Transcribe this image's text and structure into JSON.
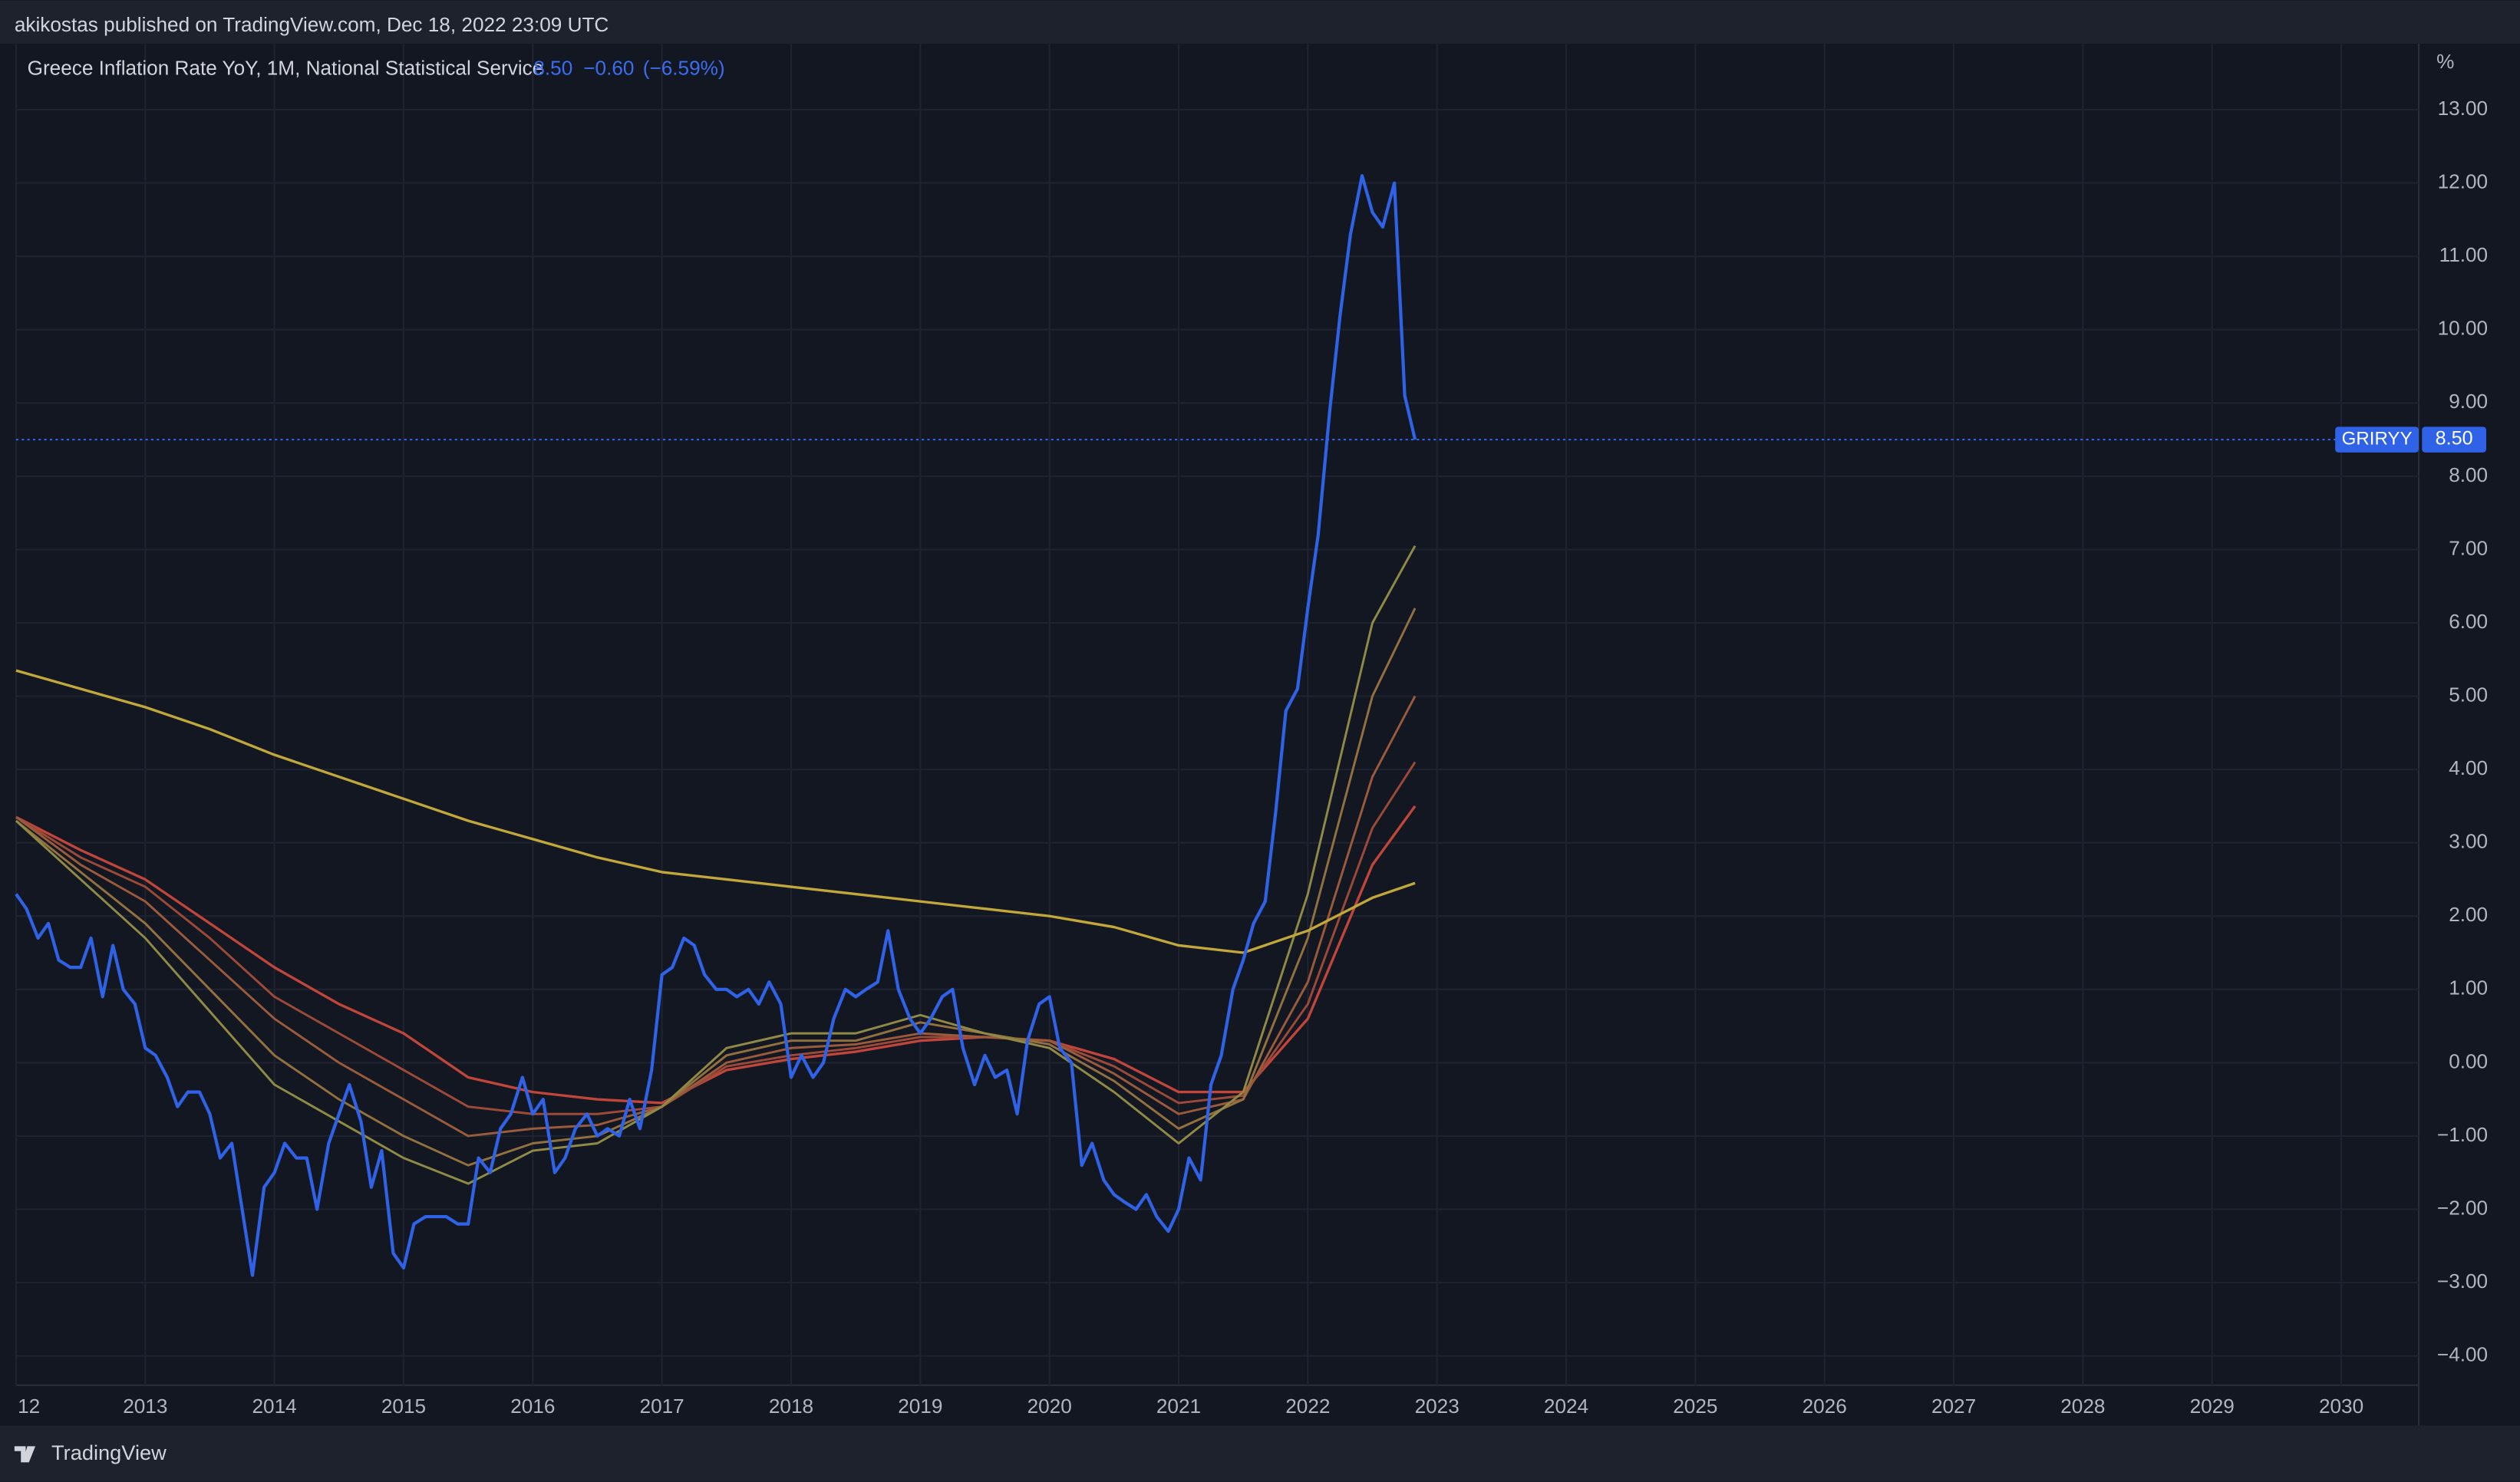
{
  "header": {
    "text": "akikostas published on TradingView.com, Dec 18, 2022 23:09 UTC"
  },
  "footer": {
    "brand": "TradingView"
  },
  "chart_data": {
    "type": "line",
    "legend": {
      "value": "8.50",
      "change": "−0.60",
      "change_pct": "(−6.59%)"
    },
    "y_unit": "%",
    "price_label": {
      "name": "GRIRYY",
      "value": 8.5,
      "label": "8.50"
    },
    "xlim": [
      2012.0,
      2030.6
    ],
    "ylim": [
      -4.4,
      13.9
    ],
    "grid": true,
    "xticks": [
      {
        "value": 2012,
        "label": "12"
      },
      2013,
      2014,
      2015,
      2016,
      2017,
      2018,
      2019,
      2020,
      2021,
      2022,
      2023,
      2024,
      2025,
      2026,
      2027,
      2028,
      2029,
      2030
    ],
    "yticks": [
      {
        "value": -4,
        "label": "−4.00"
      },
      {
        "value": -3,
        "label": "−3.00"
      },
      {
        "value": -2,
        "label": "−2.00"
      },
      {
        "value": -1,
        "label": "−1.00"
      },
      {
        "value": 0,
        "label": "0.00"
      },
      {
        "value": 1,
        "label": "1.00"
      },
      {
        "value": 2,
        "label": "2.00"
      },
      {
        "value": 3,
        "label": "3.00"
      },
      {
        "value": 4,
        "label": "4.00"
      },
      {
        "value": 5,
        "label": "5.00"
      },
      {
        "value": 6,
        "label": "6.00"
      },
      {
        "value": 7,
        "label": "7.00"
      },
      {
        "value": 8,
        "label": "8.00"
      },
      {
        "value": 9,
        "label": "9.00"
      },
      {
        "value": 10,
        "label": "10.00"
      },
      {
        "value": 11,
        "label": "11.00"
      },
      {
        "value": 12,
        "label": "12.00"
      },
      {
        "value": 13,
        "label": "13.00"
      }
    ],
    "series": [
      {
        "name": "Greece Inflation Rate YoY, 1M, National Statistical Service",
        "color": "#2f62e6",
        "width": 2,
        "x": [
          2012.0,
          2012.08,
          2012.17,
          2012.25,
          2012.33,
          2012.42,
          2012.5,
          2012.58,
          2012.67,
          2012.75,
          2012.83,
          2012.92,
          2013.0,
          2013.08,
          2013.17,
          2013.25,
          2013.33,
          2013.42,
          2013.5,
          2013.58,
          2013.67,
          2013.75,
          2013.83,
          2013.92,
          2014.0,
          2014.08,
          2014.17,
          2014.25,
          2014.33,
          2014.42,
          2014.5,
          2014.58,
          2014.67,
          2014.75,
          2014.83,
          2014.92,
          2015.0,
          2015.08,
          2015.17,
          2015.25,
          2015.33,
          2015.42,
          2015.5,
          2015.58,
          2015.67,
          2015.75,
          2015.83,
          2015.92,
          2016.0,
          2016.08,
          2016.17,
          2016.25,
          2016.33,
          2016.42,
          2016.5,
          2016.58,
          2016.67,
          2016.75,
          2016.83,
          2016.92,
          2017.0,
          2017.08,
          2017.17,
          2017.25,
          2017.33,
          2017.42,
          2017.5,
          2017.58,
          2017.67,
          2017.75,
          2017.83,
          2017.92,
          2018.0,
          2018.08,
          2018.17,
          2018.25,
          2018.33,
          2018.42,
          2018.5,
          2018.58,
          2018.67,
          2018.75,
          2018.83,
          2018.92,
          2019.0,
          2019.08,
          2019.17,
          2019.25,
          2019.33,
          2019.42,
          2019.5,
          2019.58,
          2019.67,
          2019.75,
          2019.83,
          2019.92,
          2020.0,
          2020.08,
          2020.17,
          2020.25,
          2020.33,
          2020.42,
          2020.5,
          2020.58,
          2020.67,
          2020.75,
          2020.83,
          2020.92,
          2021.0,
          2021.08,
          2021.17,
          2021.25,
          2021.33,
          2021.42,
          2021.5,
          2021.58,
          2021.67,
          2021.75,
          2021.83,
          2021.92,
          2022.0,
          2022.08,
          2022.17,
          2022.25,
          2022.33,
          2022.42,
          2022.5,
          2022.58,
          2022.67,
          2022.75,
          2022.83
        ],
        "values": [
          2.3,
          2.1,
          1.7,
          1.9,
          1.4,
          1.3,
          1.3,
          1.7,
          0.9,
          1.6,
          1.0,
          0.8,
          0.2,
          0.1,
          -0.2,
          -0.6,
          -0.4,
          -0.4,
          -0.7,
          -1.3,
          -1.1,
          -2.0,
          -2.9,
          -1.7,
          -1.5,
          -1.1,
          -1.3,
          -1.3,
          -2.0,
          -1.1,
          -0.7,
          -0.3,
          -0.8,
          -1.7,
          -1.2,
          -2.6,
          -2.8,
          -2.2,
          -2.1,
          -2.1,
          -2.1,
          -2.2,
          -2.2,
          -1.3,
          -1.5,
          -0.9,
          -0.7,
          -0.2,
          -0.7,
          -0.5,
          -1.5,
          -1.3,
          -0.9,
          -0.7,
          -1.0,
          -0.9,
          -1.0,
          -0.5,
          -0.9,
          -0.1,
          1.2,
          1.3,
          1.7,
          1.6,
          1.2,
          1.0,
          1.0,
          0.9,
          1.0,
          0.8,
          1.1,
          0.8,
          -0.2,
          0.1,
          -0.2,
          0.0,
          0.6,
          1.0,
          0.9,
          1.0,
          1.1,
          1.8,
          1.0,
          0.6,
          0.4,
          0.6,
          0.9,
          1.0,
          0.2,
          -0.3,
          0.1,
          -0.2,
          -0.1,
          -0.7,
          0.3,
          0.8,
          0.9,
          0.2,
          0.0,
          -1.4,
          -1.1,
          -1.6,
          -1.8,
          -1.9,
          -2.0,
          -1.8,
          -2.1,
          -2.3,
          -2.0,
          -1.3,
          -1.6,
          -0.3,
          0.1,
          1.0,
          1.4,
          1.9,
          2.2,
          3.4,
          4.8,
          5.1,
          6.2,
          7.2,
          8.9,
          10.2,
          11.3,
          12.1,
          11.6,
          11.4,
          12.0,
          9.1,
          8.5
        ]
      },
      {
        "color": "#c2a73b",
        "width": 1.6,
        "x": [
          2012.0,
          2012.5,
          2013.0,
          2013.5,
          2014.0,
          2014.5,
          2015.0,
          2015.5,
          2016.0,
          2016.5,
          2017.0,
          2017.5,
          2018.0,
          2018.5,
          2019.0,
          2019.5,
          2020.0,
          2020.5,
          2021.0,
          2021.5,
          2022.0,
          2022.5,
          2022.83
        ],
        "values": [
          5.35,
          5.1,
          4.85,
          4.55,
          4.2,
          3.9,
          3.6,
          3.3,
          3.05,
          2.8,
          2.6,
          2.5,
          2.4,
          2.3,
          2.2,
          2.1,
          2.0,
          1.85,
          1.6,
          1.5,
          1.8,
          2.25,
          2.45
        ]
      },
      {
        "color": "#8f8a45",
        "width": 1.4,
        "x": [
          2012.0,
          2012.5,
          2013.0,
          2013.5,
          2014.0,
          2014.5,
          2015.0,
          2015.5,
          2016.0,
          2016.5,
          2017.0,
          2017.5,
          2018.0,
          2018.5,
          2019.0,
          2019.5,
          2020.0,
          2020.5,
          2021.0,
          2021.5,
          2022.0,
          2022.5,
          2022.83
        ],
        "values": [
          3.3,
          2.5,
          1.7,
          0.7,
          -0.3,
          -0.8,
          -1.3,
          -1.65,
          -1.2,
          -1.1,
          -0.6,
          0.2,
          0.4,
          0.4,
          0.65,
          0.4,
          0.2,
          -0.4,
          -1.1,
          -0.4,
          2.3,
          6.0,
          7.05
        ]
      },
      {
        "color": "#93703f",
        "width": 1.4,
        "x": [
          2012.0,
          2012.5,
          2013.0,
          2013.5,
          2014.0,
          2014.5,
          2015.0,
          2015.5,
          2016.0,
          2016.5,
          2017.0,
          2017.5,
          2018.0,
          2018.5,
          2019.0,
          2019.5,
          2020.0,
          2020.5,
          2021.0,
          2021.5,
          2022.0,
          2022.5,
          2022.83
        ],
        "values": [
          3.3,
          2.6,
          1.9,
          1.0,
          0.1,
          -0.5,
          -1.0,
          -1.4,
          -1.1,
          -1.0,
          -0.6,
          0.1,
          0.3,
          0.3,
          0.55,
          0.4,
          0.25,
          -0.25,
          -0.9,
          -0.5,
          1.7,
          5.0,
          6.2
        ]
      },
      {
        "color": "#9a5a3c",
        "width": 1.4,
        "x": [
          2012.0,
          2012.5,
          2013.0,
          2013.5,
          2014.0,
          2014.5,
          2015.0,
          2015.5,
          2016.0,
          2016.5,
          2017.0,
          2017.5,
          2018.0,
          2018.5,
          2019.0,
          2019.5,
          2020.0,
          2020.5,
          2021.0,
          2021.5,
          2022.0,
          2022.5,
          2022.83
        ],
        "values": [
          3.35,
          2.7,
          2.2,
          1.4,
          0.6,
          0.0,
          -0.5,
          -1.0,
          -0.9,
          -0.85,
          -0.6,
          0.0,
          0.2,
          0.25,
          0.4,
          0.35,
          0.3,
          -0.15,
          -0.7,
          -0.5,
          1.1,
          3.9,
          5.0
        ]
      },
      {
        "color": "#9c4a38",
        "width": 1.4,
        "x": [
          2012.0,
          2012.5,
          2013.0,
          2013.5,
          2014.0,
          2014.5,
          2015.0,
          2015.5,
          2016.0,
          2016.5,
          2017.0,
          2017.5,
          2018.0,
          2018.5,
          2019.0,
          2019.5,
          2020.0,
          2020.5,
          2021.0,
          2021.5,
          2022.0,
          2022.5,
          2022.83
        ],
        "values": [
          3.35,
          2.8,
          2.4,
          1.7,
          0.9,
          0.4,
          -0.1,
          -0.6,
          -0.7,
          -0.7,
          -0.6,
          -0.05,
          0.1,
          0.2,
          0.35,
          0.35,
          0.3,
          -0.05,
          -0.55,
          -0.45,
          0.8,
          3.2,
          4.1
        ]
      },
      {
        "color": "#c0453a",
        "width": 1.6,
        "x": [
          2012.0,
          2012.5,
          2013.0,
          2013.5,
          2014.0,
          2014.5,
          2015.0,
          2015.5,
          2016.0,
          2016.5,
          2017.0,
          2017.5,
          2018.0,
          2018.5,
          2019.0,
          2019.5,
          2020.0,
          2020.5,
          2021.0,
          2021.5,
          2022.0,
          2022.5,
          2022.83
        ],
        "values": [
          3.35,
          2.9,
          2.5,
          1.9,
          1.3,
          0.8,
          0.4,
          -0.2,
          -0.4,
          -0.5,
          -0.55,
          -0.1,
          0.05,
          0.15,
          0.3,
          0.35,
          0.3,
          0.05,
          -0.4,
          -0.4,
          0.6,
          2.7,
          3.5
        ]
      }
    ]
  }
}
